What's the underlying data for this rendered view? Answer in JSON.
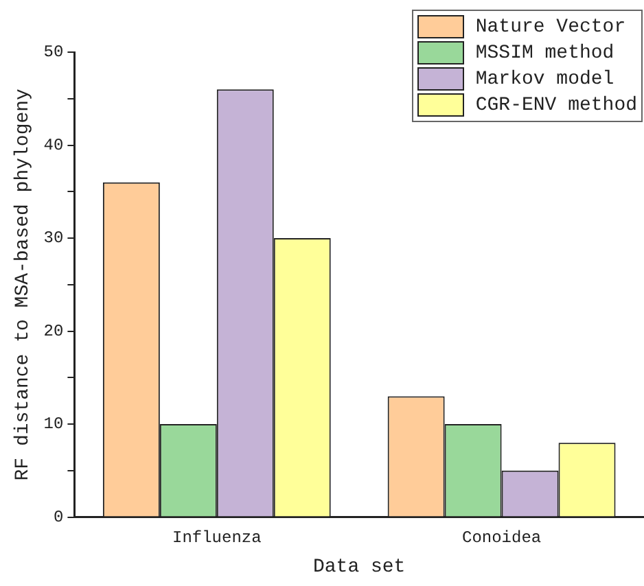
{
  "chart_data": {
    "type": "bar",
    "xlabel": "Data set",
    "ylabel": "RF distance to MSA-based phylogeny",
    "categories": [
      "Influenza",
      "Conoidea"
    ],
    "series": [
      {
        "name": "Nature Vector",
        "color": "#ffcc99",
        "values": [
          36,
          13
        ]
      },
      {
        "name": "MSSIM method",
        "color": "#99d89a",
        "values": [
          10,
          10
        ]
      },
      {
        "name": "Markov model",
        "color": "#c5b3d6",
        "values": [
          46,
          5
        ]
      },
      {
        "name": "CGR-ENV method",
        "color": "#ffff99",
        "values": [
          30,
          8
        ]
      }
    ],
    "ylim": [
      0,
      50
    ],
    "yticks": [
      0,
      {
        "value": 5,
        "label": null
      },
      10,
      {
        "value": 15,
        "label": null
      },
      20,
      {
        "value": 25,
        "label": null
      },
      30,
      {
        "value": 35,
        "label": null
      },
      40,
      {
        "value": 45,
        "label": null
      },
      50
    ],
    "grid": false,
    "legend": "top right"
  }
}
